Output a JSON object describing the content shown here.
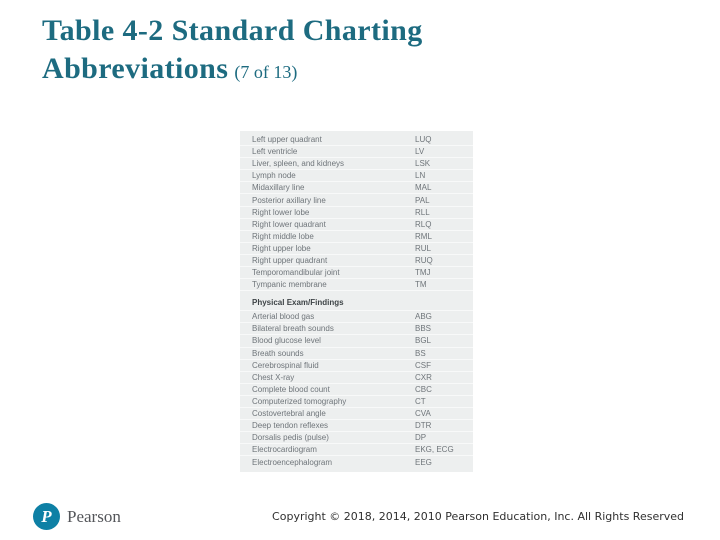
{
  "slide": {
    "title_line1": "Table 4-2 Standard Charting",
    "title_line2": "Abbreviations",
    "title_pagination": "(7 of 13)"
  },
  "table": {
    "groups": [
      {
        "header": "",
        "rows": [
          {
            "term": "Left upper quadrant",
            "abbr": "LUQ"
          },
          {
            "term": "Left ventricle",
            "abbr": "LV"
          },
          {
            "term": "Liver, spleen, and kidneys",
            "abbr": "LSK"
          },
          {
            "term": "Lymph node",
            "abbr": "LN"
          },
          {
            "term": "Midaxillary line",
            "abbr": "MAL"
          },
          {
            "term": "Posterior axillary line",
            "abbr": "PAL"
          },
          {
            "term": "Right lower lobe",
            "abbr": "RLL"
          },
          {
            "term": "Right lower quadrant",
            "abbr": "RLQ"
          },
          {
            "term": "Right middle lobe",
            "abbr": "RML"
          },
          {
            "term": "Right upper lobe",
            "abbr": "RUL"
          },
          {
            "term": "Right upper quadrant",
            "abbr": "RUQ"
          },
          {
            "term": "Temporomandibular joint",
            "abbr": "TMJ"
          },
          {
            "term": "Tympanic membrane",
            "abbr": "TM"
          }
        ]
      },
      {
        "header": "Physical Exam/Findings",
        "rows": [
          {
            "term": "Arterial blood gas",
            "abbr": "ABG"
          },
          {
            "term": "Bilateral breath sounds",
            "abbr": "BBS"
          },
          {
            "term": "Blood glucose level",
            "abbr": "BGL"
          },
          {
            "term": "Breath sounds",
            "abbr": "BS"
          },
          {
            "term": "Cerebrospinal fluid",
            "abbr": "CSF"
          },
          {
            "term": "Chest X-ray",
            "abbr": "CXR"
          },
          {
            "term": "Complete blood count",
            "abbr": "CBC"
          },
          {
            "term": "Computerized tomography",
            "abbr": "CT"
          },
          {
            "term": "Costovertebral angle",
            "abbr": "CVA"
          },
          {
            "term": "Deep tendon reflexes",
            "abbr": "DTR"
          },
          {
            "term": "Dorsalis pedis (pulse)",
            "abbr": "DP"
          },
          {
            "term": "Electrocardiogram",
            "abbr": "EKG, ECG"
          },
          {
            "term": "Electroencephalogram",
            "abbr": "EEG"
          }
        ]
      }
    ]
  },
  "footer": {
    "logo_letter": "P",
    "logo_brand": "Pearson",
    "copyright": "Copyright © 2018, 2014, 2010 Pearson Education, Inc. All Rights Reserved"
  },
  "colors": {
    "title": "#1d6b80",
    "table_background": "#edefef",
    "table_text": "#6f757a",
    "section_header_text": "#3e4447",
    "pearson_circle": "#0e80a5",
    "pearson_wordmark": "#54565a",
    "copyright_text": "#303030"
  }
}
